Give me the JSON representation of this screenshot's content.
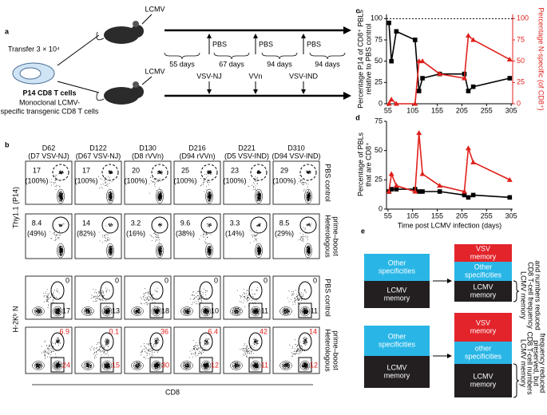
{
  "panel_a": {
    "letter": "a",
    "lcmv": [
      "LCMV",
      "LCMV"
    ],
    "transfer": "Transfer 3 × 10⁴",
    "cell_name": "P14 CD8 T cells",
    "cell_desc": [
      "Monoclonal LCMV-",
      "specific transgenic CD8 T cells"
    ],
    "control_boosts": [
      "PBS",
      "PBS",
      "PBS"
    ],
    "intervals": [
      "55 days",
      "67 days",
      "94 days",
      "94 days"
    ],
    "boosts": [
      "VSV-NJ",
      "VVn",
      "VSV-IND"
    ]
  },
  "panel_b": {
    "letter": "b",
    "columns": [
      {
        "day": "D62",
        "detail": "(D7 VSV-NJ)"
      },
      {
        "day": "D122",
        "detail": "(D67 VSV-NJ)"
      },
      {
        "day": "D130",
        "detail": "(D8 rVVn)"
      },
      {
        "day": "D216",
        "detail": "(D94 rVVn)"
      },
      {
        "day": "D221",
        "detail": "(D5 VSV-IND)"
      },
      {
        "day": "D310",
        "detail": "(D94 VSV-IND)"
      }
    ],
    "row_labels": [
      [
        "PBS control"
      ],
      [
        "Heterologous",
        "prime–boost"
      ],
      [
        "PBS control"
      ],
      [
        "Heterologous",
        "prime–boost"
      ]
    ],
    "y_labels": [
      "Thy1.1 (P14)",
      "H-2Kᵇ N"
    ],
    "x_label": "CD8",
    "thy_rows": [
      {
        "pct": [
          17,
          17,
          20,
          25,
          23,
          29
        ],
        "of": [
          "(100%)",
          "(100%)",
          "(100%)",
          "(100%)",
          "(100%)",
          "(100%)"
        ]
      },
      {
        "pct": [
          8.4,
          14,
          3.2,
          9.6,
          3.3,
          8.5
        ],
        "of": [
          "(49%)",
          "(82%)",
          "(16%)",
          "(38%)",
          "(14%)",
          "(29%)"
        ]
      }
    ],
    "tet_rows": [
      {
        "top": [
          0,
          0,
          0,
          0,
          0,
          0
        ],
        "bottom": [
          17,
          13,
          18,
          10,
          11,
          11
        ],
        "color": "#000000"
      },
      {
        "top": [
          6.9,
          0.1,
          36,
          6.4,
          42,
          14
        ],
        "bottom": [
          24,
          15,
          30,
          12,
          11,
          12
        ],
        "color": "#e0201b"
      }
    ]
  },
  "chart_data": [
    {
      "type": "line",
      "panel": "c",
      "ylabel": [
        "Percentage P14 of CD8⁺ PBLs",
        "relative to PBS control"
      ],
      "y2label": "Percentage N-specific (of CD8⁺)",
      "x": [
        57,
        62,
        72,
        110,
        118,
        125,
        160,
        210,
        218,
        228,
        302
      ],
      "series": [
        {
          "color": "#000000",
          "marker": "square",
          "values": [
            95,
            50,
            85,
            75,
            15,
            30,
            35,
            35,
            15,
            20,
            30
          ]
        },
        {
          "color": "#e0201b",
          "marker": "triangle",
          "axis": "y2",
          "values": [
            0,
            5,
            0,
            0,
            50,
            50,
            35,
            30,
            80,
            75,
            52
          ]
        }
      ],
      "xlim": [
        52,
        308
      ],
      "xticks": [
        55,
        105,
        155,
        205,
        255,
        305
      ],
      "ylim": [
        0,
        105
      ],
      "yticks": [
        0,
        25,
        50,
        75,
        100
      ],
      "y2lim": [
        0,
        105
      ],
      "y2ticks": [
        0,
        25,
        50,
        75,
        100
      ],
      "hline": 100
    },
    {
      "type": "line",
      "panel": "d",
      "ylabel": [
        "Percentage of PBLs",
        "that are CD8⁺"
      ],
      "xlabel": "Time post LCMV infection (days)",
      "x": [
        57,
        62,
        72,
        110,
        118,
        125,
        160,
        210,
        218,
        228,
        302
      ],
      "series": [
        {
          "color": "#000000",
          "marker": "square",
          "values": [
            15,
            17,
            17,
            17,
            15,
            15,
            15,
            12,
            10,
            12,
            10
          ]
        },
        {
          "color": "#e0201b",
          "marker": "triangle",
          "values": [
            15,
            30,
            20,
            15,
            65,
            30,
            20,
            15,
            52,
            40,
            25
          ]
        }
      ],
      "xlim": [
        52,
        308
      ],
      "xticks": [
        55,
        105,
        155,
        205,
        255,
        305
      ],
      "ylim": [
        0,
        75
      ],
      "yticks": [
        0,
        25,
        50,
        75
      ]
    }
  ],
  "panel_e": {
    "letter": "e",
    "scenarios": [
      {
        "before": [
          [
            "Other",
            "specificities"
          ],
          [
            "LCMV",
            "memory"
          ]
        ],
        "after": [
          [
            "VSV",
            "memory"
          ],
          [
            "Other",
            "specificities"
          ],
          [
            "LCMV",
            "memory"
          ]
        ],
        "note": [
          "LCMV memory",
          "CD8 T-cell frequency",
          "and numbers reduced"
        ]
      },
      {
        "before": [
          [
            "Other",
            "specificities"
          ],
          [
            "LCMV",
            "memory"
          ]
        ],
        "after": [
          [
            "VSV",
            "memory"
          ],
          [
            "other",
            "specificities"
          ],
          [
            "LCMV",
            "memory"
          ]
        ],
        "note": [
          "LCMV memory",
          "CD8 T-cell numbers",
          "preserved, but",
          "frequency reduced"
        ]
      }
    ]
  }
}
